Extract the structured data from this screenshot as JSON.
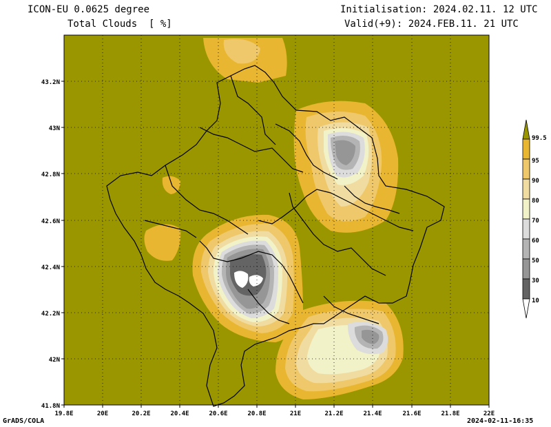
{
  "header": {
    "model": "ICON-EU 0.0625 degree",
    "variable": "Total Clouds  [ %]",
    "init": "Initialisation: 2024.02.11. 12 UTC",
    "valid": "Valid(+9): 2024.FEB.11. 21 UTC"
  },
  "footer": {
    "credit": "GrADS/COLA",
    "timestamp": "2024-02-11-16:35"
  },
  "map": {
    "lat_ticks": [
      "43.2N",
      "43N",
      "42.8N",
      "42.6N",
      "42.4N",
      "42.2N",
      "42N",
      "41.8N"
    ],
    "lon_ticks": [
      "19.8E",
      "20E",
      "20.2E",
      "20.4E",
      "20.6E",
      "20.8E",
      "21E",
      "21.2E",
      "21.4E",
      "21.6E",
      "21.8E",
      "22E"
    ],
    "background_color": "#9a9600"
  },
  "legend": {
    "labels": [
      "99.5",
      "95",
      "90",
      "80",
      "70",
      "60",
      "50",
      "30",
      "10"
    ],
    "colors": [
      "#9a9600",
      "#e8b630",
      "#eec86a",
      "#f0dca0",
      "#f2f2c8",
      "#dcdcdc",
      "#b4b4b4",
      "#969696",
      "#646464",
      "#ffffff"
    ]
  }
}
